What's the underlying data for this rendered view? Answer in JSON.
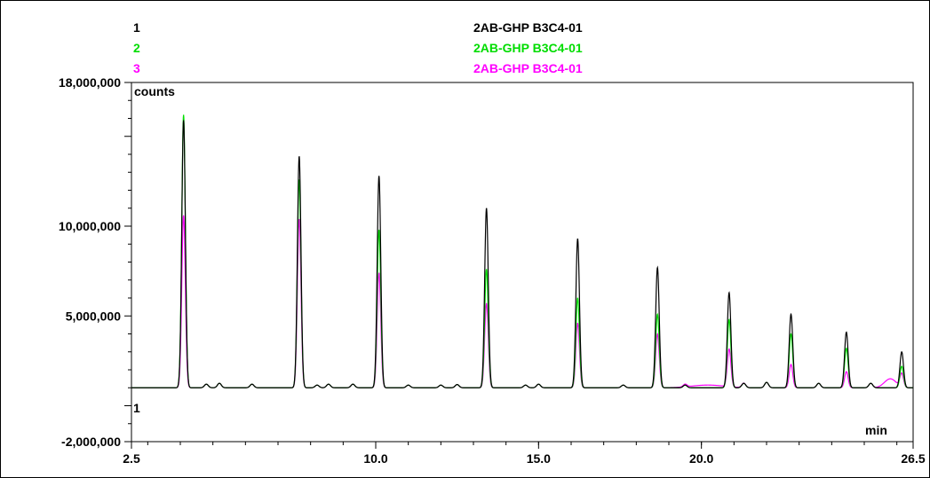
{
  "chart_data": {
    "type": "line",
    "title": "",
    "xlabel": "min",
    "ylabel": "counts",
    "xlim": [
      2.5,
      26.5
    ],
    "ylim": [
      -2000000,
      18000000
    ],
    "x_ticks": [
      2.5,
      10.0,
      15.0,
      20.0,
      26.5
    ],
    "x_tick_labels": [
      "2.5",
      "10.0",
      "15.0",
      "20.0",
      "26.5"
    ],
    "y_ticks": [
      -2000000,
      5000000,
      10000000,
      18000000
    ],
    "y_tick_labels": [
      "-2,000,000",
      "5,000,000",
      "10,000,000",
      "18,000,000"
    ],
    "baseline_marker": "1",
    "legend": [
      {
        "index": "1",
        "name": "2AB-GHP B3C4-01",
        "color": "#000000"
      },
      {
        "index": "2",
        "name": "2AB-GHP B3C4-01",
        "color": "#00dd00"
      },
      {
        "index": "3",
        "name": "2AB-GHP B3C4-01",
        "color": "#ff00ff"
      }
    ],
    "baseline": 1000000,
    "series": [
      {
        "name": "2AB-GHP B3C4-01",
        "color": "#000000",
        "peaks": [
          [
            4.1,
            15900000
          ],
          [
            7.65,
            13900000
          ],
          [
            10.1,
            12800000
          ],
          [
            13.4,
            11000000
          ],
          [
            16.2,
            9300000
          ],
          [
            18.65,
            7700000
          ],
          [
            20.85,
            6300000
          ],
          [
            22.75,
            5100000
          ],
          [
            24.45,
            4100000
          ],
          [
            26.15,
            3000000
          ]
        ]
      },
      {
        "name": "2AB-GHP B3C4-01",
        "color": "#00dd00",
        "peaks": [
          [
            4.1,
            16200000
          ],
          [
            7.65,
            12600000
          ],
          [
            10.1,
            9800000
          ],
          [
            13.4,
            7600000
          ],
          [
            16.2,
            6000000
          ],
          [
            18.65,
            5100000
          ],
          [
            20.85,
            4800000
          ],
          [
            22.75,
            4000000
          ],
          [
            24.45,
            3200000
          ],
          [
            26.15,
            2200000
          ]
        ]
      },
      {
        "name": "2AB-GHP B3C4-01",
        "color": "#ff00ff",
        "peaks": [
          [
            4.1,
            10600000
          ],
          [
            7.65,
            10400000
          ],
          [
            10.1,
            7400000
          ],
          [
            13.4,
            5700000
          ],
          [
            16.2,
            4600000
          ],
          [
            18.65,
            4000000
          ],
          [
            20.85,
            3100000
          ],
          [
            22.75,
            2300000
          ],
          [
            24.45,
            1900000
          ],
          [
            26.15,
            1750000
          ]
        ]
      }
    ]
  }
}
